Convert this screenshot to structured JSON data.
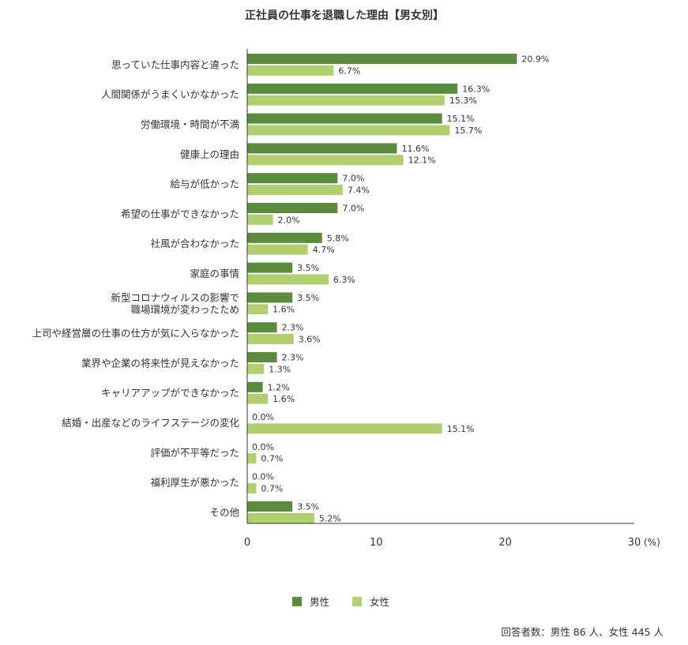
{
  "chart_data": {
    "type": "bar",
    "orientation": "horizontal",
    "title": "正社員の仕事を退職した理由【男女別】",
    "categories": [
      [
        "思っていた仕事内容と違った"
      ],
      [
        "人間関係がうまくいかなかった"
      ],
      [
        "労働環境・時間が不満"
      ],
      [
        "健康上の理由"
      ],
      [
        "給与が低かった"
      ],
      [
        "希望の仕事ができなかった"
      ],
      [
        "社風が合わなかった"
      ],
      [
        "家庭の事情"
      ],
      [
        "新型コロナウィルスの影響で",
        "職場環境が変わったため"
      ],
      [
        "上司や経営層の仕事の仕方が気に入らなかった"
      ],
      [
        "業界や企業の将来性が見えなかった"
      ],
      [
        "キャリアアップができなかった"
      ],
      [
        "結婚・出産などのライフステージの変化"
      ],
      [
        "評価が不平等だった"
      ],
      [
        "福利厚生が悪かった"
      ],
      [
        "その他"
      ]
    ],
    "series": [
      {
        "name": "男性",
        "color": "#5b8c3e",
        "values": [
          20.9,
          16.3,
          15.1,
          11.6,
          7.0,
          7.0,
          5.8,
          3.5,
          3.5,
          2.3,
          2.3,
          1.2,
          0.0,
          0.0,
          0.0,
          3.5
        ],
        "labels": [
          "20.9%",
          "16.3%",
          "15.1%",
          "11.6%",
          "7.0%",
          "7.0%",
          "5.8%",
          "3.5%",
          "3.5%",
          "2.3%",
          "2.3%",
          "1.2%",
          "0.0%",
          "0.0%",
          "0.0%",
          "3.5%"
        ]
      },
      {
        "name": "女性",
        "color": "#b0cf6e",
        "values": [
          6.7,
          15.3,
          15.7,
          12.1,
          7.4,
          2.0,
          4.7,
          6.3,
          1.6,
          3.6,
          1.3,
          1.6,
          15.1,
          0.7,
          0.7,
          5.2
        ],
        "labels": [
          "6.7%",
          "15.3%",
          "15.7%",
          "12.1%",
          "7.4%",
          "2.0%",
          "4.7%",
          "6.3%",
          "1.6%",
          "3.6%",
          "1.3%",
          "1.6%",
          "15.1%",
          "0.7%",
          "0.7%",
          "5.2%"
        ]
      }
    ],
    "xlim": [
      0,
      30
    ],
    "xticks": [
      0,
      10,
      20,
      30
    ],
    "xtick_labels": [
      "0",
      "10",
      "20",
      "30"
    ],
    "x_unit": "(%)",
    "grid": false,
    "legend_position": "bottom-center"
  },
  "note": "回答者数：男性 86 人、女性 445 人"
}
